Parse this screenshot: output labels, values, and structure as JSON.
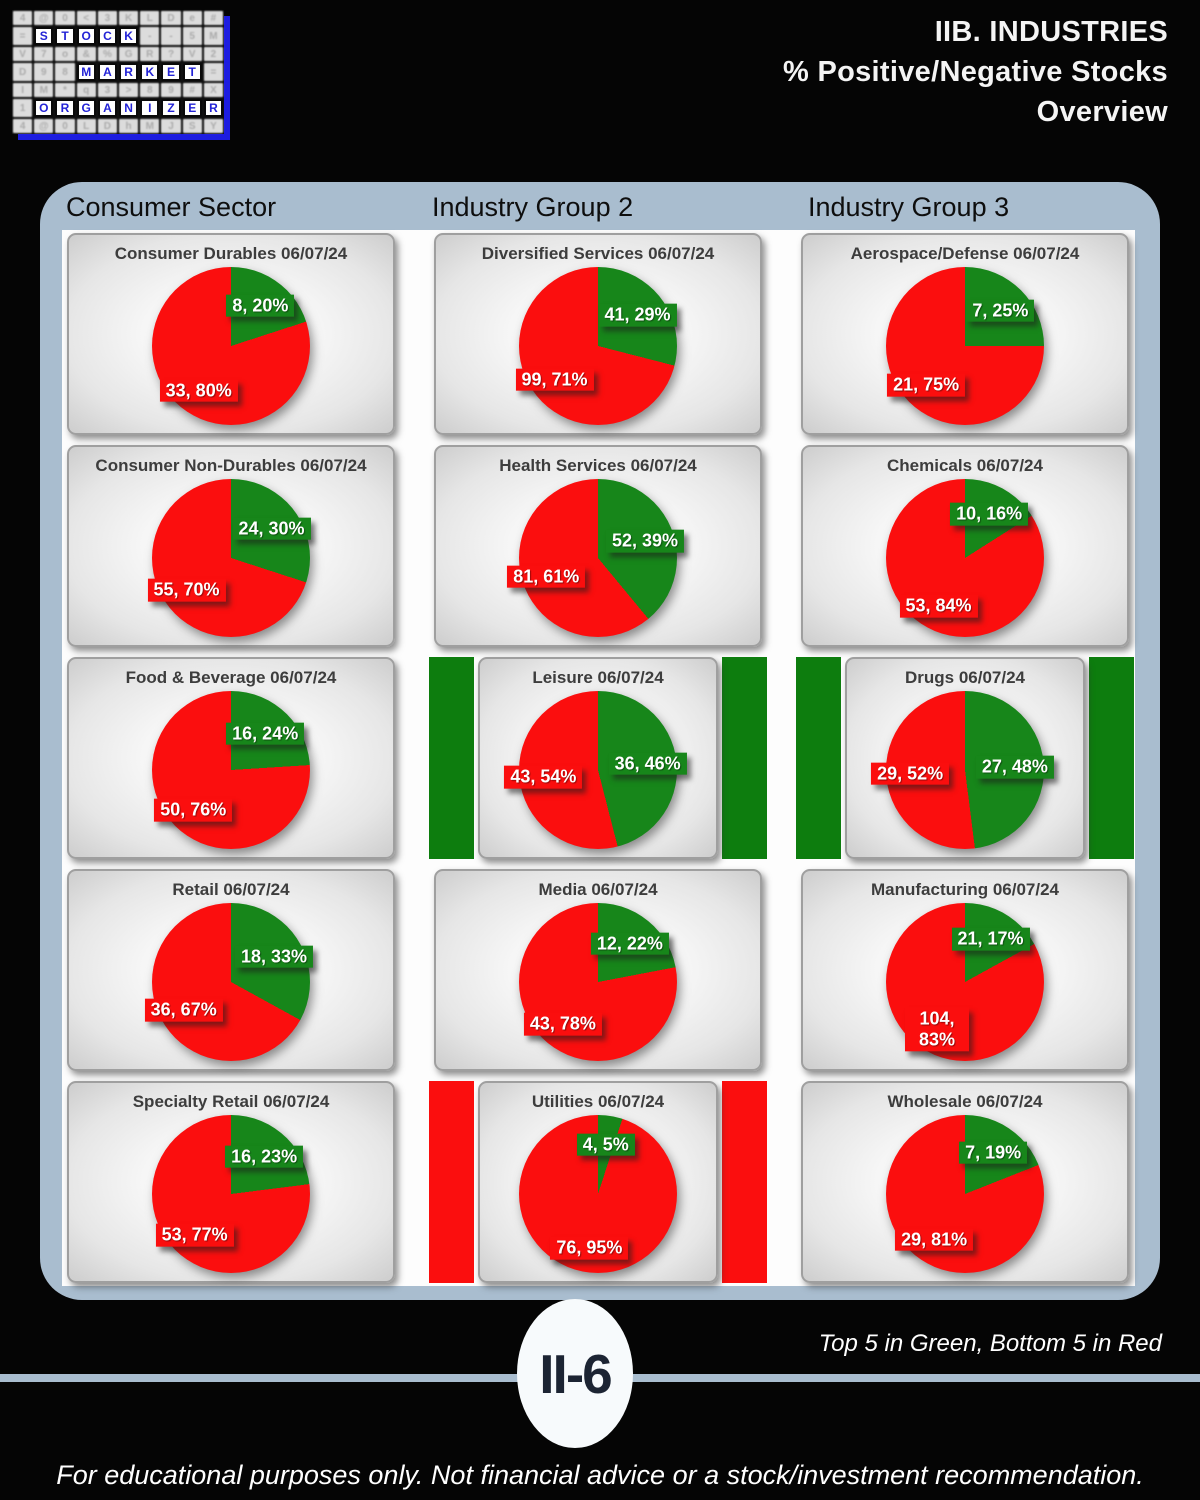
{
  "header": {
    "logo": {
      "words": [
        {
          "text": "STOCK",
          "row": 1,
          "col": 1
        },
        {
          "text": "MARKET",
          "row": 3,
          "col": 3
        },
        {
          "text": "ORGANIZER",
          "row": 5,
          "col": 1
        }
      ],
      "noise_rows_decorative": [
        "4@0<3KLDe#",
        "=     --5M",
        "V7o&%GR?V2",
        "D98      =",
        "IM*q3>89#X",
        "1         ",
        "4@0LDhMJSY"
      ]
    },
    "title_lines": [
      "IIB. INDUSTRIES",
      "% Positive/Negative Stocks",
      "Overview"
    ]
  },
  "columns": [
    {
      "header": "Consumer Sector"
    },
    {
      "header": "Industry Group 2"
    },
    {
      "header": "Industry Group 3"
    }
  ],
  "colors": {
    "positive_green": "#17861a",
    "negative_red": "#fb0e0e",
    "highlight_green_bar": "#0d7d0e",
    "highlight_red_bar": "#fb0e0e",
    "panel_blue_gray": "#a9bdcf",
    "background": "#050505"
  },
  "chart_data": [
    {
      "type": "pie",
      "column": "Consumer Sector",
      "title": "Consumer Durables 06/07/24",
      "highlight": null,
      "segments": [
        {
          "name": "Positive",
          "count": 8,
          "pct": 20,
          "label": "8, 20%",
          "color": "#17861a"
        },
        {
          "name": "Negative",
          "count": 33,
          "pct": 80,
          "label": "33, 80%",
          "color": "#fb0e0e"
        }
      ]
    },
    {
      "type": "pie",
      "column": "Consumer Sector",
      "title": "Consumer Non-Durables 06/07/24",
      "highlight": null,
      "segments": [
        {
          "name": "Positive",
          "count": 24,
          "pct": 30,
          "label": "24, 30%",
          "color": "#17861a"
        },
        {
          "name": "Negative",
          "count": 55,
          "pct": 70,
          "label": "55, 70%",
          "color": "#fb0e0e"
        }
      ]
    },
    {
      "type": "pie",
      "column": "Consumer Sector",
      "title": "Food & Beverage 06/07/24",
      "highlight": null,
      "segments": [
        {
          "name": "Positive",
          "count": 16,
          "pct": 24,
          "label": "16, 24%",
          "color": "#17861a"
        },
        {
          "name": "Negative",
          "count": 50,
          "pct": 76,
          "label": "50, 76%",
          "color": "#fb0e0e"
        }
      ]
    },
    {
      "type": "pie",
      "column": "Consumer Sector",
      "title": "Retail 06/07/24",
      "highlight": null,
      "segments": [
        {
          "name": "Positive",
          "count": 18,
          "pct": 33,
          "label": "18, 33%",
          "color": "#17861a"
        },
        {
          "name": "Negative",
          "count": 36,
          "pct": 67,
          "label": "36, 67%",
          "color": "#fb0e0e"
        }
      ]
    },
    {
      "type": "pie",
      "column": "Consumer Sector",
      "title": "Specialty Retail 06/07/24",
      "highlight": null,
      "segments": [
        {
          "name": "Positive",
          "count": 16,
          "pct": 23,
          "label": "16, 23%",
          "color": "#17861a"
        },
        {
          "name": "Negative",
          "count": 53,
          "pct": 77,
          "label": "53, 77%",
          "color": "#fb0e0e"
        }
      ]
    },
    {
      "type": "pie",
      "column": "Industry Group 2",
      "title": "Diversified Services 06/07/24",
      "highlight": null,
      "segments": [
        {
          "name": "Positive",
          "count": 41,
          "pct": 29,
          "label": "41, 29%",
          "color": "#17861a"
        },
        {
          "name": "Negative",
          "count": 99,
          "pct": 71,
          "label": "99, 71%",
          "color": "#fb0e0e"
        }
      ]
    },
    {
      "type": "pie",
      "column": "Industry Group 2",
      "title": "Health Services 06/07/24",
      "highlight": null,
      "segments": [
        {
          "name": "Positive",
          "count": 52,
          "pct": 39,
          "label": "52, 39%",
          "color": "#17861a"
        },
        {
          "name": "Negative",
          "count": 81,
          "pct": 61,
          "label": "81, 61%",
          "color": "#fb0e0e"
        }
      ]
    },
    {
      "type": "pie",
      "column": "Industry Group 2",
      "title": "Leisure 06/07/24",
      "highlight": "top5-green",
      "segments": [
        {
          "name": "Positive",
          "count": 36,
          "pct": 46,
          "label": "36, 46%",
          "color": "#17861a"
        },
        {
          "name": "Negative",
          "count": 43,
          "pct": 54,
          "label": "43, 54%",
          "color": "#fb0e0e"
        }
      ]
    },
    {
      "type": "pie",
      "column": "Industry Group 2",
      "title": "Media 06/07/24",
      "highlight": null,
      "segments": [
        {
          "name": "Positive",
          "count": 12,
          "pct": 22,
          "label": "12, 22%",
          "color": "#17861a"
        },
        {
          "name": "Negative",
          "count": 43,
          "pct": 78,
          "label": "43, 78%",
          "color": "#fb0e0e"
        }
      ]
    },
    {
      "type": "pie",
      "column": "Industry Group 2",
      "title": "Utilities 06/07/24",
      "highlight": "bottom5-red",
      "segments": [
        {
          "name": "Positive",
          "count": 4,
          "pct": 5,
          "label": "4, 5%",
          "color": "#17861a"
        },
        {
          "name": "Negative",
          "count": 76,
          "pct": 95,
          "label": "76, 95%",
          "color": "#fb0e0e"
        }
      ]
    },
    {
      "type": "pie",
      "column": "Industry Group 3",
      "title": "Aerospace/Defense 06/07/24",
      "highlight": null,
      "segments": [
        {
          "name": "Positive",
          "count": 7,
          "pct": 25,
          "label": "7, 25%",
          "color": "#17861a"
        },
        {
          "name": "Negative",
          "count": 21,
          "pct": 75,
          "label": "21, 75%",
          "color": "#fb0e0e"
        }
      ]
    },
    {
      "type": "pie",
      "column": "Industry Group 3",
      "title": "Chemicals 06/07/24",
      "highlight": null,
      "segments": [
        {
          "name": "Positive",
          "count": 10,
          "pct": 16,
          "label": "10, 16%",
          "color": "#17861a"
        },
        {
          "name": "Negative",
          "count": 53,
          "pct": 84,
          "label": "53, 84%",
          "color": "#fb0e0e"
        }
      ]
    },
    {
      "type": "pie",
      "column": "Industry Group 3",
      "title": "Drugs 06/07/24",
      "highlight": "top5-green",
      "segments": [
        {
          "name": "Positive",
          "count": 27,
          "pct": 48,
          "label": "27, 48%",
          "color": "#17861a"
        },
        {
          "name": "Negative",
          "count": 29,
          "pct": 52,
          "label": "29, 52%",
          "color": "#fb0e0e"
        }
      ]
    },
    {
      "type": "pie",
      "column": "Industry Group 3",
      "title": "Manufacturing 06/07/24",
      "highlight": null,
      "segments": [
        {
          "name": "Positive",
          "count": 21,
          "pct": 17,
          "label": "21, 17%",
          "color": "#17861a"
        },
        {
          "name": "Negative",
          "count": 104,
          "pct": 83,
          "label": "104, 83%",
          "color": "#fb0e0e"
        }
      ]
    },
    {
      "type": "pie",
      "column": "Industry Group 3",
      "title": "Wholesale 06/07/24",
      "highlight": null,
      "segments": [
        {
          "name": "Positive",
          "count": 7,
          "pct": 19,
          "label": "7, 19%",
          "color": "#17861a"
        },
        {
          "name": "Negative",
          "count": 29,
          "pct": 81,
          "label": "29, 81%",
          "color": "#fb0e0e"
        }
      ]
    }
  ],
  "footer": {
    "page_badge": "II-6",
    "legend": "Top 5 in Green, Bottom 5 in Red",
    "disclaimer": "For educational purposes only. Not financial advice or a stock/investment recommendation."
  }
}
